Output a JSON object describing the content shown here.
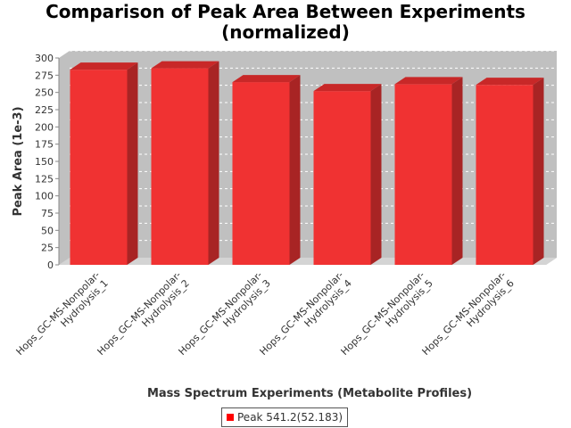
{
  "chart_data": {
    "type": "bar",
    "title": "Comparison of Peak Area Between Experiments (normalized)",
    "title_lines": [
      "Comparison of Peak Area Between Experiments",
      "(normalized)"
    ],
    "xlabel": "Mass Spectrum Experiments (Metabolite Profiles)",
    "ylabel": "Peak Area (1e-3)",
    "categories": [
      "Hops_GC-MS-Nonpolar-Hydrolysis_1",
      "Hops_GC-MS-Nonpolar-Hydrolysis_2",
      "Hops_GC-MS-Nonpolar-Hydrolysis_3",
      "Hops_GC-MS-Nonpolar-Hydrolysis_4",
      "Hops_GC-MS-Nonpolar-Hydrolysis_5",
      "Hops_GC-MS-Nonpolar-Hydrolysis_6"
    ],
    "category_label_lines": [
      [
        "Hops_GC-MS-Nonpolar-",
        "Hydrolysis_1"
      ],
      [
        "Hops_GC-MS-Nonpolar-",
        "Hydrolysis_2"
      ],
      [
        "Hops_GC-MS-Nonpolar-",
        "Hydrolysis_3"
      ],
      [
        "Hops_GC-MS-Nonpolar-",
        "Hydrolysis_4"
      ],
      [
        "Hops_GC-MS-Nonpolar-",
        "Hydrolysis_5"
      ],
      [
        "Hops_GC-MS-Nonpolar-",
        "Hydrolysis_6"
      ]
    ],
    "series": [
      {
        "name": "Peak 541.2(52.183)",
        "values": [
          283,
          285,
          265,
          252,
          262,
          261
        ],
        "color": "#ff0000"
      }
    ],
    "ylim": [
      0,
      300
    ],
    "yticks": [
      "0",
      "25",
      "50",
      "75",
      "100",
      "125",
      "150",
      "175",
      "200",
      "225",
      "250",
      "275",
      "300"
    ],
    "grid": true,
    "style": "3d",
    "legend_position": "bottom"
  }
}
